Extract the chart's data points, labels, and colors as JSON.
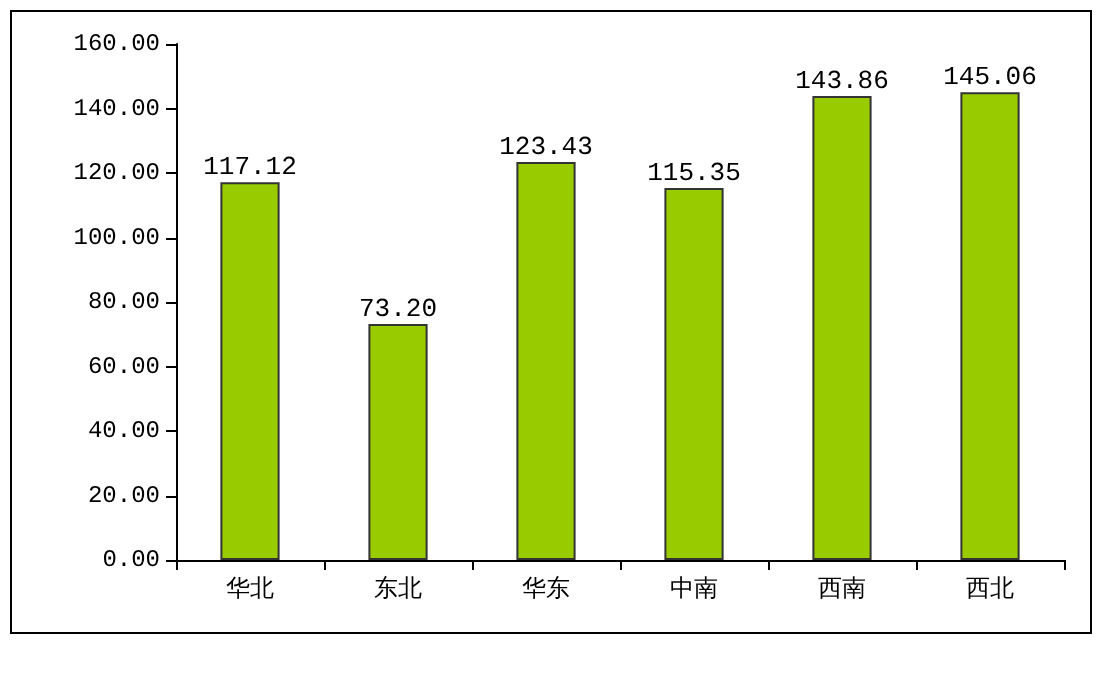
{
  "chart_data": {
    "type": "bar",
    "categories": [
      "华北",
      "东北",
      "华东",
      "中南",
      "西南",
      "西北"
    ],
    "values": [
      117.12,
      73.2,
      123.43,
      115.35,
      143.86,
      145.06
    ],
    "value_labels": [
      "117.12",
      "73.20",
      "123.43",
      "115.35",
      "143.86",
      "145.06"
    ],
    "color": "#99cc00",
    "ylim": [
      0,
      160
    ],
    "yticks": [
      {
        "value": 0,
        "label": "0.00"
      },
      {
        "value": 20,
        "label": "20.00"
      },
      {
        "value": 40,
        "label": "40.00"
      },
      {
        "value": 60,
        "label": "60.00"
      },
      {
        "value": 80,
        "label": "80.00"
      },
      {
        "value": 100,
        "label": "100.00"
      },
      {
        "value": 120,
        "label": "120.00"
      },
      {
        "value": 140,
        "label": "140.00"
      },
      {
        "value": 160,
        "label": "160.00"
      }
    ],
    "grid": false
  }
}
